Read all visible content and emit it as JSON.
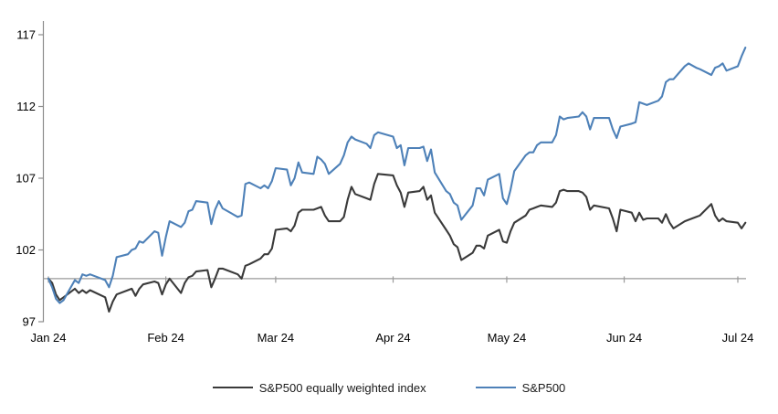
{
  "chart_data": {
    "type": "line",
    "title": "",
    "y_axis": {
      "ticks": [
        97,
        102,
        107,
        112,
        117
      ],
      "min": 97,
      "max": 117,
      "baseline_value": 100,
      "grid": false
    },
    "x_axis": {
      "tick_labels": [
        "Jan 24",
        "Feb 24",
        "Mar 24",
        "Apr 24",
        "May 24",
        "Jun 24",
        "Jul 24"
      ],
      "tick_months": [
        1,
        2,
        3,
        4,
        5,
        6,
        7
      ]
    },
    "dates": [
      "12-29",
      "01-02",
      "01-03",
      "01-04",
      "01-05",
      "01-08",
      "01-09",
      "01-10",
      "01-11",
      "01-12",
      "01-16",
      "01-17",
      "01-18",
      "01-19",
      "01-22",
      "01-23",
      "01-24",
      "01-25",
      "01-26",
      "01-29",
      "01-30",
      "01-31",
      "02-01",
      "02-02",
      "02-05",
      "02-06",
      "02-07",
      "02-08",
      "02-09",
      "02-12",
      "02-13",
      "02-14",
      "02-15",
      "02-16",
      "02-20",
      "02-21",
      "02-22",
      "02-23",
      "02-26",
      "02-27",
      "02-28",
      "02-29",
      "03-01",
      "03-04",
      "03-05",
      "03-06",
      "03-07",
      "03-08",
      "03-11",
      "03-12",
      "03-13",
      "03-14",
      "03-15",
      "03-18",
      "03-19",
      "03-20",
      "03-21",
      "03-22",
      "03-25",
      "03-26",
      "03-27",
      "03-28",
      "04-01",
      "04-02",
      "04-03",
      "04-04",
      "04-05",
      "04-08",
      "04-09",
      "04-10",
      "04-11",
      "04-12",
      "04-15",
      "04-16",
      "04-17",
      "04-18",
      "04-19",
      "04-22",
      "04-23",
      "04-24",
      "04-25",
      "04-26",
      "04-29",
      "04-30",
      "05-01",
      "05-02",
      "05-03",
      "05-06",
      "05-07",
      "05-08",
      "05-09",
      "05-10",
      "05-13",
      "05-14",
      "05-15",
      "05-16",
      "05-17",
      "05-20",
      "05-21",
      "05-22",
      "05-23",
      "05-24",
      "05-28",
      "05-29",
      "05-30",
      "05-31",
      "06-03",
      "06-04",
      "06-05",
      "06-06",
      "06-07",
      "06-10",
      "06-11",
      "06-12",
      "06-13",
      "06-14",
      "06-17",
      "06-18",
      "06-20",
      "06-21",
      "06-24",
      "06-25",
      "06-26",
      "06-27",
      "06-28",
      "07-01",
      "07-02",
      "07-03"
    ],
    "series": [
      {
        "name": "S&P500 equally weighted index",
        "color": "#3a3a3a",
        "values": [
          100.0,
          99.7,
          98.9,
          98.5,
          98.7,
          99.3,
          99.0,
          99.2,
          99.0,
          99.2,
          98.7,
          97.7,
          98.4,
          98.9,
          99.2,
          99.3,
          98.8,
          99.3,
          99.6,
          99.8,
          99.7,
          98.9,
          99.6,
          100.0,
          99.0,
          99.7,
          100.1,
          100.2,
          100.5,
          100.6,
          99.4,
          100.0,
          100.7,
          100.7,
          100.3,
          100.0,
          100.9,
          101.0,
          101.4,
          101.7,
          101.7,
          102.1,
          103.4,
          103.5,
          103.3,
          103.7,
          104.6,
          104.8,
          104.8,
          104.9,
          105.0,
          104.4,
          104.0,
          104.0,
          104.3,
          105.5,
          106.4,
          105.9,
          105.6,
          105.5,
          106.6,
          107.3,
          107.2,
          106.5,
          106.0,
          105.0,
          106.0,
          106.1,
          106.4,
          105.5,
          105.8,
          104.6,
          103.4,
          103.0,
          102.4,
          102.2,
          101.3,
          101.8,
          102.3,
          102.3,
          102.1,
          103.0,
          103.4,
          102.6,
          102.5,
          103.3,
          103.9,
          104.4,
          104.8,
          104.9,
          105.0,
          105.1,
          105.0,
          105.3,
          106.1,
          106.2,
          106.1,
          106.1,
          106.0,
          105.7,
          104.8,
          105.1,
          104.9,
          104.2,
          103.3,
          104.8,
          104.6,
          104.0,
          104.6,
          104.1,
          104.2,
          104.2,
          103.9,
          104.5,
          103.9,
          103.5,
          104.0,
          104.1,
          104.3,
          104.4,
          105.2,
          104.4,
          104.0,
          104.2,
          104.0,
          103.9,
          103.5,
          103.9
        ]
      },
      {
        "name": "S&P500",
        "color": "#4e81b8",
        "values": [
          100.0,
          99.4,
          98.6,
          98.3,
          98.5,
          99.9,
          99.7,
          100.3,
          100.2,
          100.3,
          99.9,
          99.4,
          100.2,
          101.5,
          101.7,
          102.0,
          102.1,
          102.6,
          102.5,
          103.3,
          103.2,
          101.6,
          102.9,
          104.0,
          103.6,
          103.9,
          104.7,
          104.8,
          105.4,
          105.3,
          103.8,
          104.8,
          105.4,
          104.9,
          104.3,
          104.4,
          106.6,
          106.7,
          106.3,
          106.5,
          106.3,
          106.8,
          107.7,
          107.6,
          106.5,
          107.0,
          108.1,
          107.4,
          107.3,
          108.5,
          108.3,
          108.0,
          107.3,
          108.0,
          108.6,
          109.5,
          109.9,
          109.7,
          109.4,
          109.1,
          110.0,
          110.2,
          109.9,
          109.1,
          109.3,
          107.9,
          109.1,
          109.1,
          109.2,
          108.2,
          109.0,
          107.4,
          106.1,
          105.9,
          105.3,
          105.1,
          104.1,
          105.1,
          106.3,
          106.3,
          105.8,
          106.9,
          107.3,
          105.6,
          105.2,
          106.2,
          107.5,
          108.6,
          108.8,
          108.8,
          109.3,
          109.5,
          109.5,
          110.0,
          111.3,
          111.1,
          111.2,
          111.3,
          111.6,
          111.3,
          110.4,
          111.2,
          111.2,
          110.4,
          109.8,
          110.6,
          110.8,
          110.9,
          112.3,
          112.2,
          112.1,
          112.4,
          112.7,
          113.7,
          113.9,
          113.9,
          114.8,
          115.0,
          114.7,
          114.6,
          114.2,
          114.7,
          114.8,
          115.0,
          114.5,
          114.8,
          115.5,
          116.1
        ]
      }
    ],
    "legend_position": "bottom",
    "colors": {
      "axis_gray": "#9a9a9a",
      "label_black": "#000000",
      "background": "#ffffff"
    }
  },
  "legend": {
    "items": [
      {
        "label": "S&P500 equally weighted index",
        "color": "#3a3a3a"
      },
      {
        "label": "S&P500",
        "color": "#4e81b8"
      }
    ]
  }
}
